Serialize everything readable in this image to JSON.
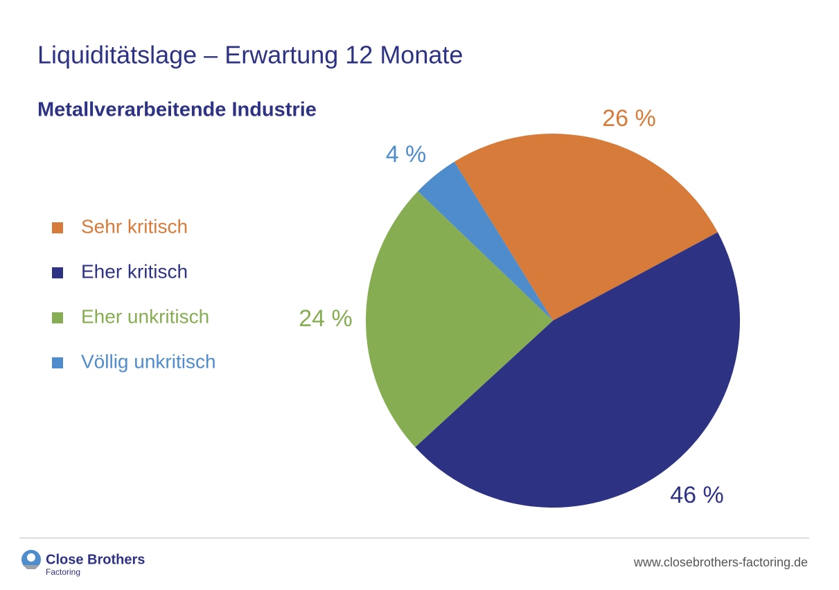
{
  "chart_data": {
    "type": "pie",
    "title": "Liquiditätslage – Erwartung 12 Monate",
    "subtitle": "Metallverarbeitende Industrie",
    "categories": [
      "Sehr kritisch",
      "Eher kritisch",
      "Eher unkritisch",
      "Völlig unkritisch"
    ],
    "values": [
      26,
      46,
      24,
      4
    ],
    "value_labels": [
      "26 %",
      "46 %",
      "24 %",
      "4 %"
    ],
    "colors": [
      "#d67b3a",
      "#2e3283",
      "#87ad52",
      "#4f8ccb"
    ],
    "legend": "left"
  },
  "footer": {
    "brand": "Close Brothers",
    "brand_sub": "Factoring",
    "url": "www.closebrothers-factoring.de"
  }
}
